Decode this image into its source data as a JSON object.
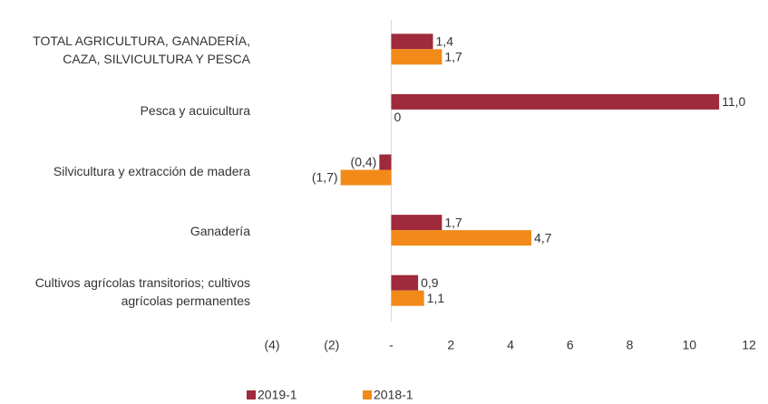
{
  "chart_data": {
    "type": "hbar",
    "categories": [
      "TOTAL AGRICULTURA, GANADERÍA, CAZA, SILVICULTURA Y PESCA",
      "Pesca y acuicultura",
      "Silvicultura y extracción de madera",
      "Ganadería",
      "Cultivos agrícolas transitorios; cultivos agrícolas permanentes"
    ],
    "series": [
      {
        "name": "2019-1",
        "color": "#9e2a3b",
        "values": [
          1.4,
          11.0,
          -0.4,
          1.7,
          0.9
        ],
        "value_labels": [
          "1,4",
          "11,0",
          "(0,4)",
          "1,7",
          "0,9"
        ]
      },
      {
        "name": "2018-1",
        "color": "#f28a1a",
        "values": [
          1.7,
          0,
          -1.7,
          4.7,
          1.1
        ],
        "value_labels": [
          "1,7",
          "0",
          "(1,7)",
          "4,7",
          "1,1"
        ]
      }
    ],
    "xlim": [
      -4,
      12
    ],
    "xticks": [
      {
        "value": -4,
        "label": "(4)"
      },
      {
        "value": -2,
        "label": "(2)"
      },
      {
        "value": 0,
        "label": "-"
      },
      2,
      4,
      6,
      8,
      10,
      12
    ],
    "grid": false,
    "legend": "bottom"
  }
}
